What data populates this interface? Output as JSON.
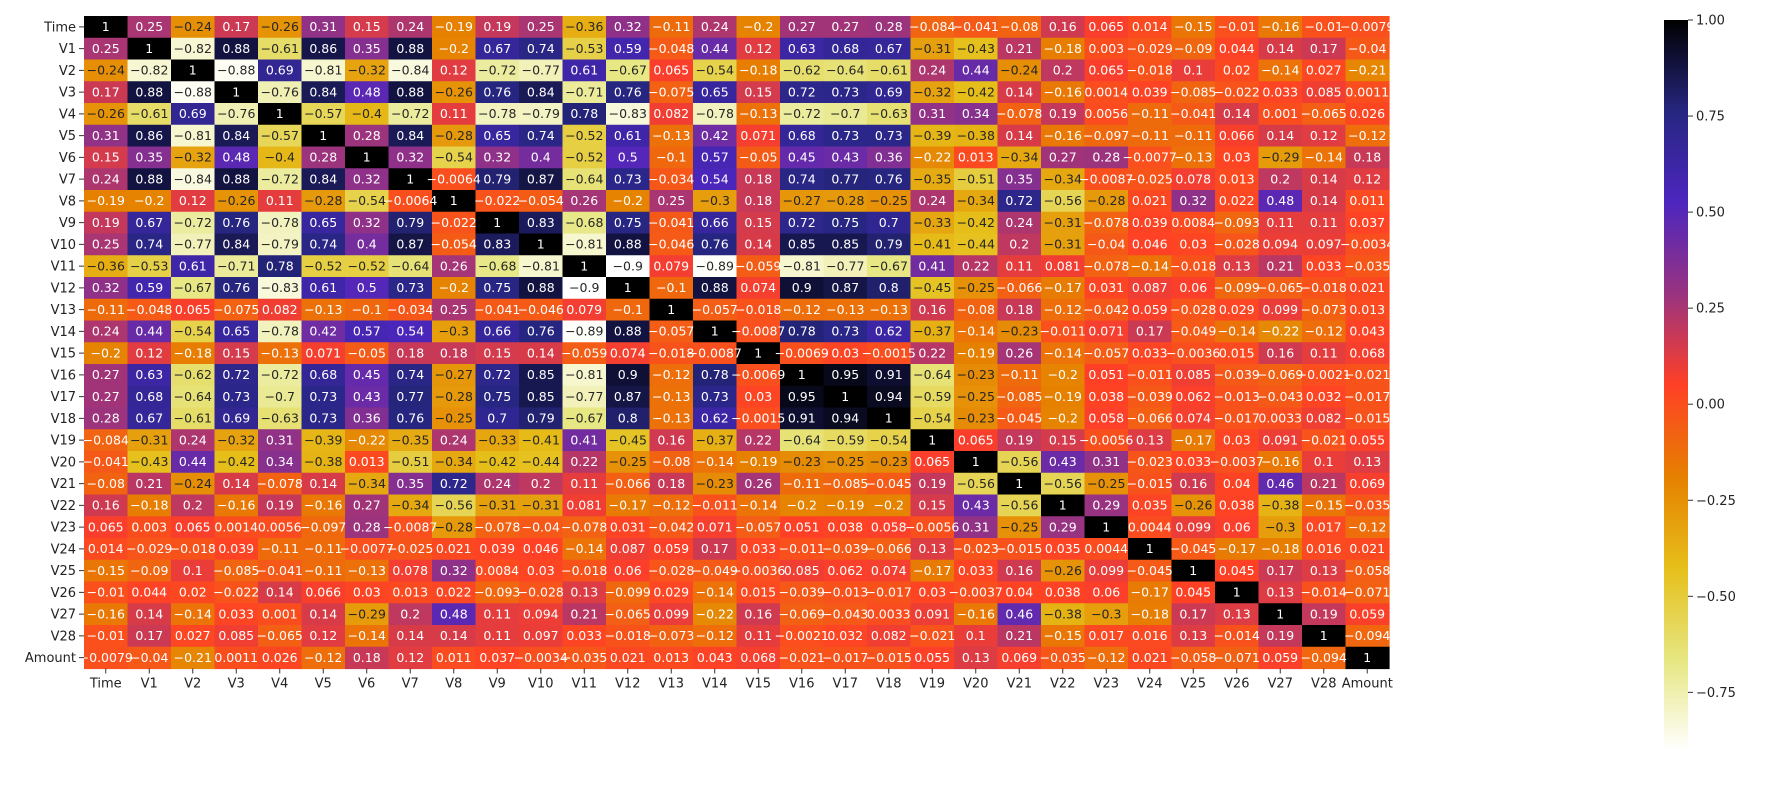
{
  "chart_data": {
    "type": "heatmap",
    "title": "",
    "xlabel": "",
    "ylabel": "",
    "colormap": "CMRmap",
    "vmin": -0.9,
    "vmax": 1.0,
    "labels": [
      "Time",
      "V1",
      "V2",
      "V3",
      "V4",
      "V5",
      "V6",
      "V7",
      "V8",
      "V9",
      "V10",
      "V11",
      "V12",
      "V13",
      "V14",
      "V15",
      "V16",
      "V17",
      "V18",
      "V19",
      "V20",
      "V21",
      "V22",
      "V23",
      "V24",
      "V25",
      "V26",
      "V27",
      "V28",
      "Amount"
    ],
    "colorbar_ticks": [
      1.0,
      0.75,
      0.5,
      0.25,
      0.0,
      -0.25,
      -0.5,
      -0.75
    ],
    "colorbar_tick_labels": [
      "1.00",
      "0.75",
      "0.50",
      "0.25",
      "0.00",
      "−0.25",
      "−0.50",
      "−0.75"
    ],
    "matrix": [
      [
        "1",
        "0.25",
        "-0.24",
        "0.17",
        "-0.26",
        "0.31",
        "0.15",
        "0.24",
        "-0.19",
        "0.19",
        "0.25",
        "-0.36",
        "0.32",
        "-0.11",
        "0.24",
        "-0.2",
        "0.27",
        "0.27",
        "0.28",
        "-0.084",
        "-0.041",
        "-0.08",
        "0.16",
        "0.065",
        "0.014",
        "-0.15",
        "-0.01",
        "-0.16",
        "-0.01",
        "-0.0079"
      ],
      [
        "0.25",
        "1",
        "-0.82",
        "0.88",
        "-0.61",
        "0.86",
        "0.35",
        "0.88",
        "-0.2",
        "0.67",
        "0.74",
        "-0.53",
        "0.59",
        "-0.048",
        "0.44",
        "0.12",
        "0.63",
        "0.68",
        "0.67",
        "-0.31",
        "-0.43",
        "0.21",
        "-0.18",
        "0.003",
        "-0.029",
        "-0.09",
        "0.044",
        "0.14",
        "0.17",
        "-0.04"
      ],
      [
        "-0.24",
        "-0.82",
        "1",
        "-0.88",
        "0.69",
        "-0.81",
        "-0.32",
        "-0.84",
        "0.12",
        "-0.72",
        "-0.77",
        "0.61",
        "-0.67",
        "0.065",
        "-0.54",
        "-0.18",
        "-0.62",
        "-0.64",
        "-0.61",
        "0.24",
        "0.44",
        "-0.24",
        "0.2",
        "0.065",
        "-0.018",
        "0.1",
        "0.02",
        "-0.14",
        "0.027",
        "-0.21"
      ],
      [
        "0.17",
        "0.88",
        "-0.88",
        "1",
        "-0.76",
        "0.84",
        "0.48",
        "0.88",
        "-0.26",
        "0.76",
        "0.84",
        "-0.71",
        "0.76",
        "-0.075",
        "0.65",
        "0.15",
        "0.72",
        "0.73",
        "0.69",
        "-0.32",
        "-0.42",
        "0.14",
        "-0.16",
        "0.0014",
        "0.039",
        "-0.085",
        "-0.022",
        "0.033",
        "0.085",
        "0.0011"
      ],
      [
        "-0.26",
        "-0.61",
        "0.69",
        "-0.76",
        "1",
        "-0.57",
        "-0.4",
        "-0.72",
        "0.11",
        "-0.78",
        "-0.79",
        "0.78",
        "-0.83",
        "0.082",
        "-0.78",
        "-0.13",
        "-0.72",
        "-0.7",
        "-0.63",
        "0.31",
        "0.34",
        "-0.078",
        "0.19",
        "0.0056",
        "-0.11",
        "-0.041",
        "0.14",
        "0.001",
        "-0.065",
        "0.026"
      ],
      [
        "0.31",
        "0.86",
        "-0.81",
        "0.84",
        "-0.57",
        "1",
        "0.28",
        "0.84",
        "-0.28",
        "0.65",
        "0.74",
        "-0.52",
        "0.61",
        "-0.13",
        "0.42",
        "0.071",
        "0.68",
        "0.73",
        "0.73",
        "-0.39",
        "-0.38",
        "0.14",
        "-0.16",
        "-0.097",
        "-0.11",
        "-0.11",
        "0.066",
        "0.14",
        "0.12",
        "-0.12"
      ],
      [
        "0.15",
        "0.35",
        "-0.32",
        "0.48",
        "-0.4",
        "0.28",
        "1",
        "0.32",
        "-0.54",
        "0.32",
        "0.4",
        "-0.52",
        "0.5",
        "-0.1",
        "0.57",
        "-0.05",
        "0.45",
        "0.43",
        "0.36",
        "-0.22",
        "0.013",
        "-0.34",
        "0.27",
        "0.28",
        "-0.0077",
        "-0.13",
        "0.03",
        "-0.29",
        "-0.14",
        "0.18"
      ],
      [
        "0.24",
        "0.88",
        "-0.84",
        "0.88",
        "-0.72",
        "0.84",
        "0.32",
        "1",
        "-0.0064",
        "0.79",
        "0.87",
        "-0.64",
        "0.73",
        "-0.034",
        "0.54",
        "0.18",
        "0.74",
        "0.77",
        "0.76",
        "-0.35",
        "-0.51",
        "0.35",
        "-0.34",
        "-0.0087",
        "-0.025",
        "0.078",
        "0.013",
        "0.2",
        "0.14",
        "0.12"
      ],
      [
        "-0.19",
        "-0.2",
        "0.12",
        "-0.26",
        "0.11",
        "-0.28",
        "-0.54",
        "-0.0064",
        "1",
        "-0.022",
        "-0.054",
        "0.26",
        "-0.2",
        "0.25",
        "-0.3",
        "0.18",
        "-0.27",
        "-0.28",
        "-0.25",
        "0.24",
        "-0.34",
        "0.72",
        "-0.56",
        "-0.28",
        "0.021",
        "0.32",
        "0.022",
        "0.48",
        "0.14",
        "0.011"
      ],
      [
        "0.19",
        "0.67",
        "-0.72",
        "0.76",
        "-0.78",
        "0.65",
        "0.32",
        "0.79",
        "-0.022",
        "1",
        "0.83",
        "-0.68",
        "0.75",
        "-0.041",
        "0.66",
        "0.15",
        "0.72",
        "0.75",
        "0.7",
        "-0.33",
        "-0.42",
        "0.24",
        "-0.31",
        "-0.078",
        "0.039",
        "0.0084",
        "-0.093",
        "0.11",
        "0.11",
        "0.037"
      ],
      [
        "0.25",
        "0.74",
        "-0.77",
        "0.84",
        "-0.79",
        "0.74",
        "0.4",
        "0.87",
        "-0.054",
        "0.83",
        "1",
        "-0.81",
        "0.88",
        "-0.046",
        "0.76",
        "0.14",
        "0.85",
        "0.85",
        "0.79",
        "-0.41",
        "-0.44",
        "0.2",
        "-0.31",
        "-0.04",
        "0.046",
        "0.03",
        "-0.028",
        "0.094",
        "0.097",
        "-0.0034"
      ],
      [
        "-0.36",
        "-0.53",
        "0.61",
        "-0.71",
        "0.78",
        "-0.52",
        "-0.52",
        "-0.64",
        "0.26",
        "-0.68",
        "-0.81",
        "1",
        "-0.9",
        "0.079",
        "-0.89",
        "-0.059",
        "-0.81",
        "-0.77",
        "-0.67",
        "0.41",
        "0.22",
        "0.11",
        "0.081",
        "-0.078",
        "-0.14",
        "-0.018",
        "0.13",
        "0.21",
        "0.033",
        "-0.035"
      ],
      [
        "0.32",
        "0.59",
        "-0.67",
        "0.76",
        "-0.83",
        "0.61",
        "0.5",
        "0.73",
        "-0.2",
        "0.75",
        "0.88",
        "-0.9",
        "1",
        "-0.1",
        "0.88",
        "0.074",
        "0.9",
        "0.87",
        "0.8",
        "-0.45",
        "-0.25",
        "-0.066",
        "-0.17",
        "0.031",
        "0.087",
        "0.06",
        "-0.099",
        "-0.065",
        "-0.018",
        "0.021"
      ],
      [
        "-0.11",
        "-0.048",
        "0.065",
        "-0.075",
        "0.082",
        "-0.13",
        "-0.1",
        "-0.034",
        "0.25",
        "-0.041",
        "-0.046",
        "0.079",
        "-0.1",
        "1",
        "-0.057",
        "-0.018",
        "-0.12",
        "-0.13",
        "-0.13",
        "0.16",
        "-0.08",
        "0.18",
        "-0.12",
        "-0.042",
        "0.059",
        "-0.028",
        "0.029",
        "0.099",
        "-0.073",
        "0.013"
      ],
      [
        "0.24",
        "0.44",
        "-0.54",
        "0.65",
        "-0.78",
        "0.42",
        "0.57",
        "0.54",
        "-0.3",
        "0.66",
        "0.76",
        "-0.89",
        "0.88",
        "-0.057",
        "1",
        "-0.0087",
        "0.78",
        "0.73",
        "0.62",
        "-0.37",
        "-0.14",
        "-0.23",
        "-0.011",
        "0.071",
        "0.17",
        "-0.049",
        "-0.14",
        "-0.22",
        "-0.12",
        "0.043"
      ],
      [
        "-0.2",
        "0.12",
        "-0.18",
        "0.15",
        "-0.13",
        "0.071",
        "-0.05",
        "0.18",
        "0.18",
        "0.15",
        "0.14",
        "-0.059",
        "0.074",
        "-0.018",
        "-0.0087",
        "1",
        "-0.0069",
        "0.03",
        "-0.0015",
        "0.22",
        "-0.19",
        "0.26",
        "-0.14",
        "-0.057",
        "0.033",
        "-0.0036",
        "0.015",
        "0.16",
        "0.11",
        "0.068"
      ],
      [
        "0.27",
        "0.63",
        "-0.62",
        "0.72",
        "-0.72",
        "0.68",
        "0.45",
        "0.74",
        "-0.27",
        "0.72",
        "0.85",
        "-0.81",
        "0.9",
        "-0.12",
        "0.78",
        "-0.0069",
        "1",
        "0.95",
        "0.91",
        "-0.64",
        "-0.23",
        "-0.11",
        "-0.2",
        "0.051",
        "-0.011",
        "0.085",
        "-0.039",
        "-0.069",
        "-0.0021",
        "-0.021"
      ],
      [
        "0.27",
        "0.68",
        "-0.64",
        "0.73",
        "-0.7",
        "0.73",
        "0.43",
        "0.77",
        "-0.28",
        "0.75",
        "0.85",
        "-0.77",
        "0.87",
        "-0.13",
        "0.73",
        "0.03",
        "0.95",
        "1",
        "0.94",
        "-0.59",
        "-0.25",
        "-0.085",
        "-0.19",
        "0.038",
        "-0.039",
        "0.062",
        "-0.013",
        "-0.043",
        "0.032",
        "-0.017"
      ],
      [
        "0.28",
        "0.67",
        "-0.61",
        "0.69",
        "-0.63",
        "0.73",
        "0.36",
        "0.76",
        "-0.25",
        "0.7",
        "0.79",
        "-0.67",
        "0.8",
        "-0.13",
        "0.62",
        "-0.0015",
        "0.91",
        "0.94",
        "1",
        "-0.54",
        "-0.23",
        "-0.045",
        "-0.2",
        "0.058",
        "-0.066",
        "0.074",
        "-0.017",
        "0.0033",
        "0.082",
        "-0.015"
      ],
      [
        "-0.084",
        "-0.31",
        "0.24",
        "-0.32",
        "0.31",
        "-0.39",
        "-0.22",
        "-0.35",
        "0.24",
        "-0.33",
        "-0.41",
        "0.41",
        "-0.45",
        "0.16",
        "-0.37",
        "0.22",
        "-0.64",
        "-0.59",
        "-0.54",
        "1",
        "0.065",
        "0.19",
        "0.15",
        "-0.0056",
        "0.13",
        "-0.17",
        "0.03",
        "0.091",
        "-0.021",
        "0.055"
      ],
      [
        "-0.041",
        "-0.43",
        "0.44",
        "-0.42",
        "0.34",
        "-0.38",
        "0.013",
        "-0.51",
        "-0.34",
        "-0.42",
        "-0.44",
        "0.22",
        "-0.25",
        "-0.08",
        "-0.14",
        "-0.19",
        "-0.23",
        "-0.25",
        "-0.23",
        "0.065",
        "1",
        "-0.56",
        "0.43",
        "0.31",
        "-0.023",
        "0.033",
        "-0.0037",
        "-0.16",
        "0.1",
        "0.13"
      ],
      [
        "-0.08",
        "0.21",
        "-0.24",
        "0.14",
        "-0.078",
        "0.14",
        "-0.34",
        "0.35",
        "0.72",
        "0.24",
        "0.2",
        "0.11",
        "-0.066",
        "0.18",
        "-0.23",
        "0.26",
        "-0.11",
        "-0.085",
        "-0.045",
        "0.19",
        "-0.56",
        "1",
        "-0.56",
        "-0.25",
        "-0.015",
        "0.16",
        "0.04",
        "0.46",
        "0.21",
        "0.069"
      ],
      [
        "0.16",
        "-0.18",
        "0.2",
        "-0.16",
        "0.19",
        "-0.16",
        "0.27",
        "-0.34",
        "-0.56",
        "-0.31",
        "-0.31",
        "0.081",
        "-0.17",
        "-0.12",
        "-0.011",
        "-0.14",
        "-0.2",
        "-0.19",
        "-0.2",
        "0.15",
        "0.43",
        "-0.56",
        "1",
        "0.29",
        "0.035",
        "-0.26",
        "0.038",
        "-0.38",
        "-0.15",
        "-0.035"
      ],
      [
        "0.065",
        "0.003",
        "0.065",
        "0.0014",
        "0.0056",
        "-0.097",
        "0.28",
        "-0.0087",
        "-0.28",
        "-0.078",
        "-0.04",
        "-0.078",
        "0.031",
        "-0.042",
        "0.071",
        "-0.057",
        "0.051",
        "0.038",
        "0.058",
        "-0.0056",
        "0.31",
        "-0.25",
        "0.29",
        "1",
        "0.0044",
        "0.099",
        "0.06",
        "-0.3",
        "0.017",
        "-0.12"
      ],
      [
        "0.014",
        "-0.029",
        "-0.018",
        "0.039",
        "-0.11",
        "-0.11",
        "-0.0077",
        "-0.025",
        "0.021",
        "0.039",
        "0.046",
        "-0.14",
        "0.087",
        "0.059",
        "0.17",
        "0.033",
        "-0.011",
        "-0.039",
        "-0.066",
        "0.13",
        "-0.023",
        "-0.015",
        "0.035",
        "0.0044",
        "1",
        "-0.045",
        "-0.17",
        "-0.18",
        "0.016",
        "0.021"
      ],
      [
        "-0.15",
        "-0.09",
        "0.1",
        "-0.085",
        "-0.041",
        "-0.11",
        "-0.13",
        "0.078",
        "0.32",
        "0.0084",
        "0.03",
        "-0.018",
        "0.06",
        "-0.028",
        "-0.049",
        "-0.0036",
        "0.085",
        "0.062",
        "0.074",
        "-0.17",
        "0.033",
        "0.16",
        "-0.26",
        "0.099",
        "-0.045",
        "1",
        "0.045",
        "0.17",
        "0.13",
        "-0.058"
      ],
      [
        "-0.01",
        "0.044",
        "0.02",
        "-0.022",
        "0.14",
        "0.066",
        "0.03",
        "0.013",
        "0.022",
        "-0.093",
        "-0.028",
        "0.13",
        "-0.099",
        "0.029",
        "-0.14",
        "0.015",
        "-0.039",
        "-0.013",
        "-0.017",
        "0.03",
        "-0.0037",
        "0.04",
        "0.038",
        "0.06",
        "-0.17",
        "0.045",
        "1",
        "0.13",
        "-0.014",
        "-0.071"
      ],
      [
        "-0.16",
        "0.14",
        "-0.14",
        "0.033",
        "0.001",
        "0.14",
        "-0.29",
        "0.2",
        "0.48",
        "0.11",
        "0.094",
        "0.21",
        "-0.065",
        "0.099",
        "-0.22",
        "0.16",
        "-0.069",
        "-0.043",
        "0.0033",
        "0.091",
        "-0.16",
        "0.46",
        "-0.38",
        "-0.3",
        "-0.18",
        "0.17",
        "0.13",
        "1",
        "0.19",
        "0.059"
      ],
      [
        "-0.01",
        "0.17",
        "0.027",
        "0.085",
        "-0.065",
        "0.12",
        "-0.14",
        "0.14",
        "0.14",
        "0.11",
        "0.097",
        "0.033",
        "-0.018",
        "-0.073",
        "-0.12",
        "0.11",
        "-0.0021",
        "0.032",
        "0.082",
        "-0.021",
        "0.1",
        "0.21",
        "-0.15",
        "0.017",
        "0.016",
        "0.13",
        "-0.014",
        "0.19",
        "1",
        "-0.094"
      ],
      [
        "-0.0079",
        "-0.04",
        "-0.21",
        "0.0011",
        "0.026",
        "-0.12",
        "0.18",
        "0.12",
        "0.011",
        "0.037",
        "-0.0034",
        "-0.035",
        "0.021",
        "0.013",
        "0.043",
        "0.068",
        "-0.021",
        "-0.017",
        "-0.015",
        "0.055",
        "0.13",
        "0.069",
        "-0.035",
        "-0.12",
        "0.021",
        "-0.058",
        "-0.071",
        "0.059",
        "-0.094",
        "1"
      ]
    ]
  }
}
